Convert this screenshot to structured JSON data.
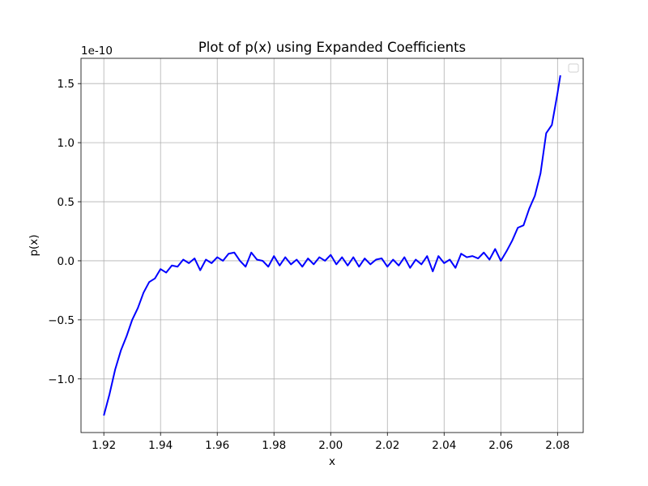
{
  "chart_data": {
    "type": "line",
    "title": "Plot of p(x) using Expanded Coefficients",
    "xlabel": "x",
    "ylabel": "p(x)",
    "y_offset_label": "1e-10",
    "x": [
      1.92,
      1.922,
      1.924,
      1.926,
      1.928,
      1.93,
      1.932,
      1.934,
      1.936,
      1.938,
      1.94,
      1.942,
      1.944,
      1.946,
      1.948,
      1.95,
      1.952,
      1.954,
      1.956,
      1.958,
      1.96,
      1.962,
      1.964,
      1.966,
      1.968,
      1.97,
      1.972,
      1.974,
      1.976,
      1.978,
      1.98,
      1.982,
      1.984,
      1.986,
      1.988,
      1.99,
      1.992,
      1.994,
      1.996,
      1.998,
      2.0,
      2.002,
      2.004,
      2.006,
      2.008,
      2.01,
      2.012,
      2.014,
      2.016,
      2.018,
      2.02,
      2.022,
      2.024,
      2.026,
      2.028,
      2.03,
      2.032,
      2.034,
      2.036,
      2.038,
      2.04,
      2.042,
      2.044,
      2.046,
      2.048,
      2.05,
      2.052,
      2.054,
      2.056,
      2.058,
      2.06,
      2.062,
      2.064,
      2.066,
      2.068,
      2.07,
      2.072,
      2.074,
      2.076,
      2.078,
      2.08,
      2.081
    ],
    "series": [
      {
        "name": "p(x)",
        "color": "#0000ff",
        "values": [
          -1.31,
          -1.13,
          -0.92,
          -0.76,
          -0.64,
          -0.5,
          -0.4,
          -0.27,
          -0.18,
          -0.15,
          -0.07,
          -0.1,
          -0.04,
          -0.05,
          0.01,
          -0.02,
          0.02,
          -0.08,
          0.01,
          -0.02,
          0.03,
          0.0,
          0.06,
          0.07,
          0.0,
          -0.05,
          0.07,
          0.01,
          0.0,
          -0.05,
          0.04,
          -0.04,
          0.03,
          -0.03,
          0.01,
          -0.05,
          0.02,
          -0.03,
          0.03,
          0.0,
          0.05,
          -0.03,
          0.03,
          -0.04,
          0.03,
          -0.05,
          0.02,
          -0.03,
          0.01,
          0.02,
          -0.05,
          0.01,
          -0.04,
          0.03,
          -0.06,
          0.01,
          -0.03,
          0.04,
          -0.09,
          0.04,
          -0.02,
          0.01,
          -0.06,
          0.06,
          0.03,
          0.04,
          0.02,
          0.07,
          0.01,
          0.1,
          0.0,
          0.08,
          0.17,
          0.28,
          0.3,
          0.44,
          0.55,
          0.74,
          1.08,
          1.15,
          1.42,
          1.57
        ]
      }
    ],
    "xlim": [
      1.91195,
      2.08905
    ],
    "xticks": [
      1.92,
      1.94,
      1.96,
      1.98,
      {
        "value": 2,
        "label": "2.00"
      },
      2.02,
      2.04,
      2.06,
      2.08
    ],
    "ylim": [
      -1.454,
      1.714
    ],
    "yticks": [
      {
        "value": -1,
        "label": "−1.0"
      },
      {
        "value": -0.5,
        "label": "−0.5"
      },
      {
        "value": 0,
        "label": "0.0"
      },
      0.5,
      {
        "value": 1,
        "label": "1.0"
      },
      1.5
    ],
    "grid": true
  }
}
